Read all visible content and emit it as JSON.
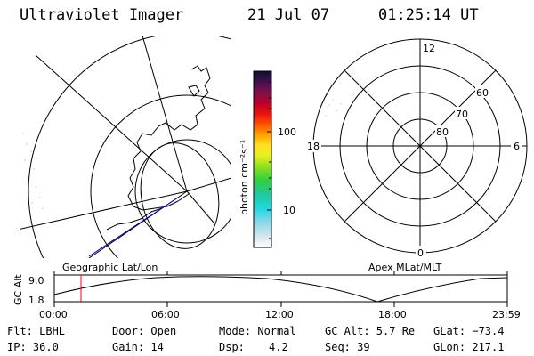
{
  "header": {
    "title": "Ultraviolet Imager",
    "date": "21 Jul 07",
    "time": "01:25:14 UT"
  },
  "left_map": {
    "label": "Geographic Lat/Lon"
  },
  "polar_map": {
    "label": "Apex MLat/MLT",
    "mlt_labels": {
      "top": "12",
      "left": "18",
      "right": "6",
      "bottom": "0"
    },
    "mlat_labels": [
      "60",
      "70",
      "80"
    ]
  },
  "colorbar": {
    "unit_label": "photon cm⁻²s⁻¹",
    "ticks": [
      "100",
      "10"
    ]
  },
  "orbit_plot": {
    "ylabel": "GC Alt",
    "y_ticks": [
      "9.0",
      "1.8"
    ],
    "x_ticks": [
      "00:00",
      "06:00",
      "12:00",
      "18:00",
      "23:59"
    ],
    "marker_time": "01:25"
  },
  "info": {
    "flt": "Flt: LBHL",
    "ip": "IP: 36.0",
    "door": "Door: Open",
    "gain": "Gain: 14",
    "mode": "Mode: Normal",
    "dsp_label": "Dsp:",
    "dsp_value": "4.2",
    "gc_alt": "GC Alt: 5.7 Re",
    "seq": "Seq: 39",
    "glat": "GLat: −73.4",
    "glon": "GLon: 217.1"
  },
  "colors": {
    "foreground": "#000000",
    "marker": "#ff0000",
    "trajectory": "#0000cc"
  }
}
